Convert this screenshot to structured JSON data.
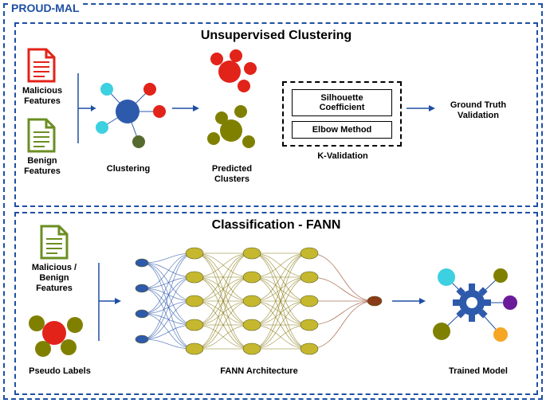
{
  "title": "PROUD-MAL",
  "top_panel": {
    "title": "Unsupervised Clustering",
    "doc_malicious": {
      "color": "#e2231a",
      "label": "Malicious Features"
    },
    "doc_benign": {
      "color": "#6b8e23",
      "label": "Benign Features"
    },
    "clustering": {
      "label": "Clustering",
      "center_color": "#2e5aac",
      "node_colors": [
        "#3dd0e0",
        "#e2231a",
        "#e2231a",
        "#3dd0e0",
        "#556b2f"
      ]
    },
    "predicted": {
      "label": "Predicted Clusters",
      "group1_color": "#e2231a",
      "group2_color": "#808000"
    },
    "kvalidation": {
      "label": "K-Validation",
      "item1": "Silhouette Coefficient",
      "item2": "Elbow Method"
    },
    "ground_truth": "Ground Truth Validation"
  },
  "bottom_panel": {
    "title": "Classification - FANN",
    "doc_color": "#6b8e23",
    "doc_label": "Malicious / Benign Features",
    "pseudo": {
      "label": "Pseudo Labels",
      "colors": [
        "#808000",
        "#e2231a",
        "#808000",
        "#808000",
        "#808000"
      ]
    },
    "fann_label": "FANN Architecture",
    "fann": {
      "input_color": "#2e5aac",
      "hidden_color": "#c5b82e",
      "hidden_stroke": "#8b7d1a",
      "output_color": "#8b3a1a"
    },
    "trained": {
      "label": "Trained Model",
      "gear_color": "#2e5aac",
      "node_colors": [
        "#3dd0e0",
        "#808000",
        "#6a1b9a",
        "#f5a623",
        "#808000"
      ]
    }
  },
  "arrow_color": "#1e4fa3"
}
